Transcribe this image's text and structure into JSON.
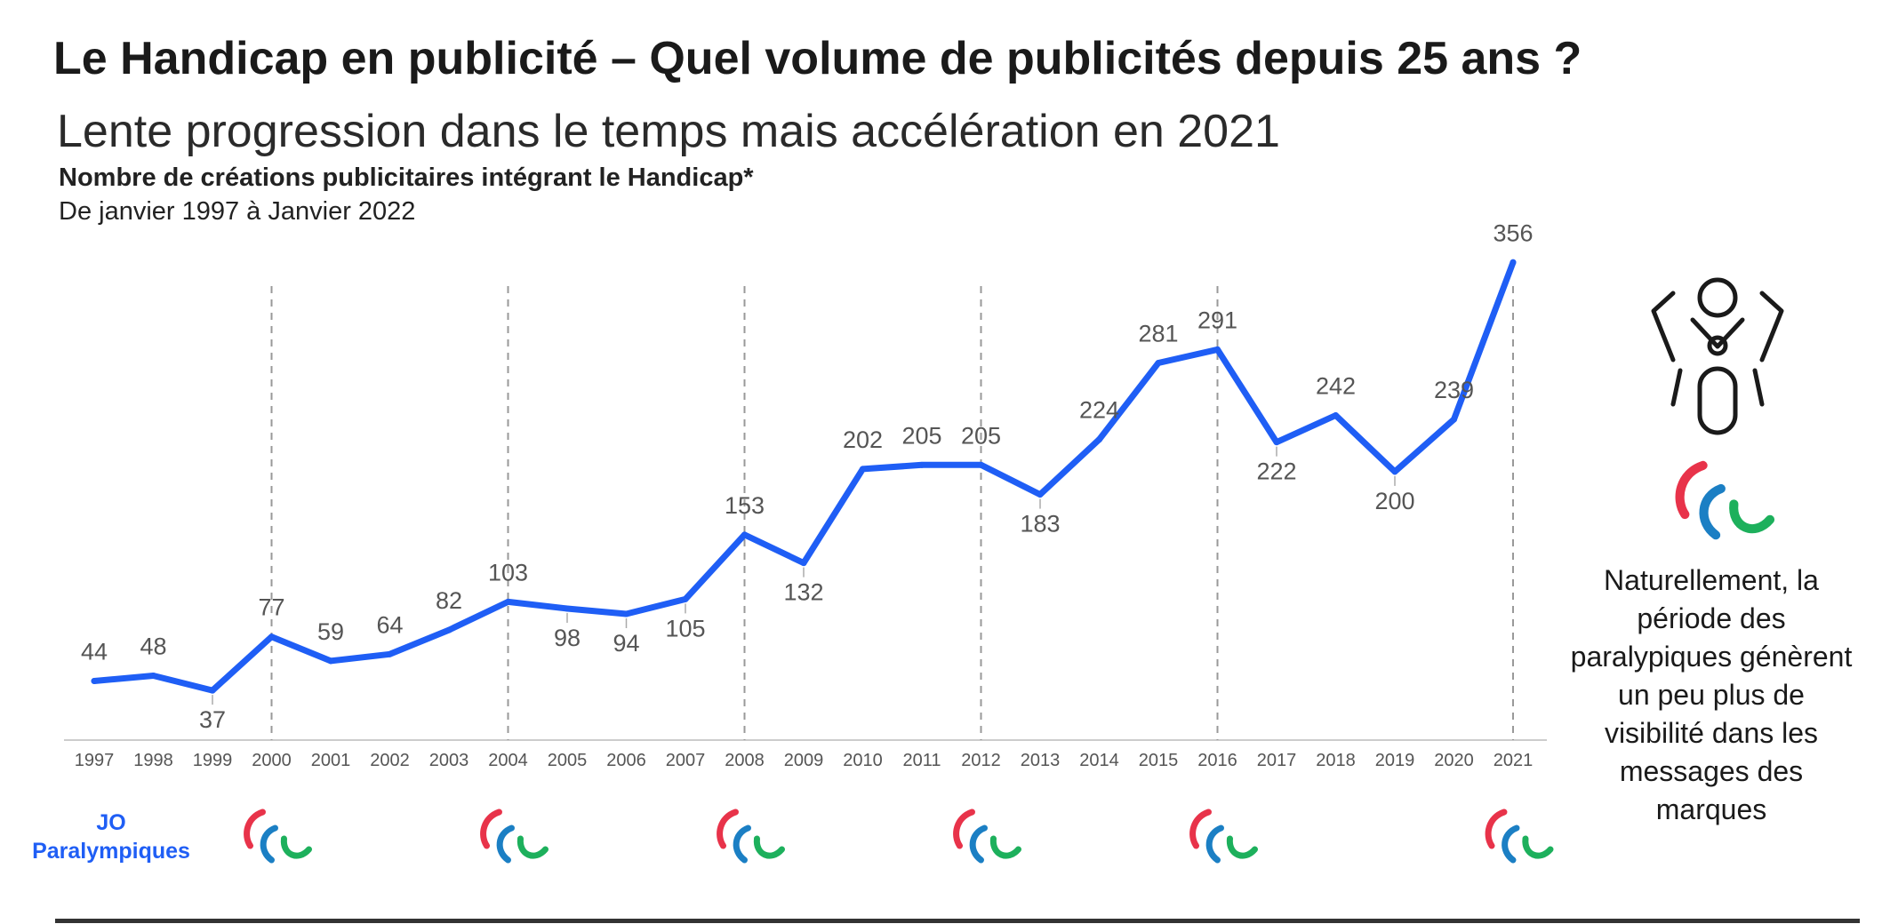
{
  "header": {
    "title": "Le Handicap en publicité – Quel volume de publicités depuis 25 ans ?",
    "subtitle": "Lente progression dans le temps mais accélération en 2021"
  },
  "chart_data": {
    "type": "line",
    "title": "Nombre de créations publicitaires intégrant le Handicap*",
    "subtitle": "De janvier 1997 à Janvier 2022",
    "xlabel": "",
    "ylabel": "",
    "ylim": [
      0,
      380
    ],
    "categories": [
      "1997",
      "1998",
      "1999",
      "2000",
      "2001",
      "2002",
      "2003",
      "2004",
      "2005",
      "2006",
      "2007",
      "2008",
      "2009",
      "2010",
      "2011",
      "2012",
      "2013",
      "2014",
      "2015",
      "2016",
      "2017",
      "2018",
      "2019",
      "2020",
      "2021"
    ],
    "series": [
      {
        "values": [
          44,
          48,
          37,
          77,
          59,
          64,
          82,
          103,
          98,
          94,
          105,
          153,
          132,
          202,
          205,
          205,
          183,
          224,
          281,
          291,
          222,
          242,
          200,
          239,
          356
        ]
      }
    ],
    "label_placement": [
      "above",
      "above",
      "below",
      "above",
      "above",
      "above",
      "above",
      "above",
      "below",
      "below",
      "below",
      "above",
      "below",
      "above",
      "above",
      "above",
      "below",
      "above",
      "above",
      "above",
      "below",
      "above",
      "below",
      "above",
      "above"
    ],
    "paralympic_years": [
      "2000",
      "2004",
      "2008",
      "2012",
      "2016",
      "2021"
    ],
    "grid": false,
    "colors": {
      "line": "#1f5ef5",
      "labels": "#555555",
      "ticks": "#555555",
      "guide": "#999999",
      "axis": "#cccccc"
    }
  },
  "legend": {
    "jo_label": "JO Paralympiques"
  },
  "side_note": {
    "text": "Naturellement, la période des paralypiques génèrent un peu plus de visibilité dans les messages des marques",
    "icons": [
      "wheelchair-athlete-icon",
      "paralympic-agitos-icon"
    ]
  },
  "icons": {
    "paralympic_logo": "paralympic-agitos-icon",
    "colors": {
      "red": "#e8334a",
      "blue": "#1b7fc4",
      "green": "#1db05c"
    }
  }
}
